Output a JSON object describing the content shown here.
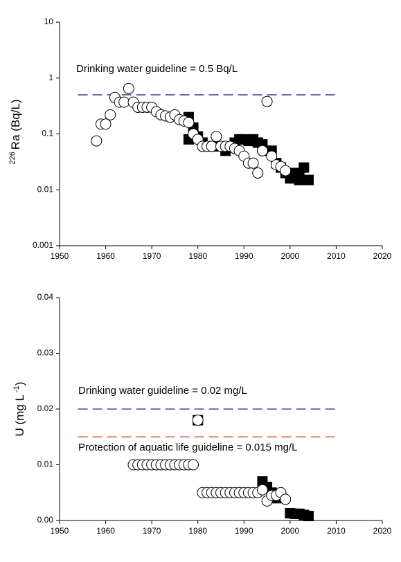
{
  "chart_data": [
    {
      "type": "scatter",
      "yscale": "log",
      "ylabel_sup": "226",
      "ylabel": "Ra (Bq/L)",
      "xlim": [
        1950,
        2020
      ],
      "xticks": [
        1950,
        1960,
        1970,
        1980,
        1990,
        2000,
        2010,
        2020
      ],
      "ylim": [
        0.001,
        10
      ],
      "yticks": [
        0.001,
        0.01,
        0.1,
        1,
        10
      ],
      "grid": false,
      "series": [
        {
          "marker": "square",
          "color": "#000000",
          "x": [
            1978,
            1978,
            1979,
            1980,
            1981,
            1983,
            1985,
            1986,
            1988,
            1989,
            1990,
            1991,
            1992,
            1993,
            1994,
            1995,
            1996,
            1997,
            1998,
            1999,
            2000,
            2001,
            2001,
            2002,
            2002,
            2003,
            2004
          ],
          "values": [
            0.2,
            0.08,
            0.13,
            0.09,
            0.07,
            0.06,
            0.06,
            0.05,
            0.07,
            0.08,
            0.08,
            0.075,
            0.08,
            0.07,
            0.065,
            0.05,
            0.05,
            0.03,
            0.025,
            0.02,
            0.016,
            0.017,
            0.02,
            0.02,
            0.015,
            0.025,
            0.015
          ]
        },
        {
          "marker": "circle",
          "color": "#ffffff",
          "x": [
            1958,
            1959,
            1960,
            1961,
            1962,
            1963,
            1964,
            1965,
            1966,
            1967,
            1968,
            1969,
            1970,
            1971,
            1972,
            1973,
            1974,
            1975,
            1976,
            1977,
            1978,
            1979,
            1980,
            1981,
            1982,
            1983,
            1984,
            1985,
            1986,
            1987,
            1988,
            1989,
            1990,
            1991,
            1992,
            1993,
            1994,
            1995,
            1996,
            1997,
            1998,
            1999
          ],
          "values": [
            0.075,
            0.15,
            0.15,
            0.22,
            0.45,
            0.37,
            0.37,
            0.65,
            0.37,
            0.3,
            0.3,
            0.3,
            0.3,
            0.25,
            0.22,
            0.21,
            0.2,
            0.22,
            0.18,
            0.17,
            0.16,
            0.1,
            0.08,
            0.06,
            0.06,
            0.06,
            0.09,
            0.06,
            0.06,
            0.06,
            0.055,
            0.05,
            0.04,
            0.03,
            0.03,
            0.02,
            0.05,
            0.38,
            0.04,
            0.028,
            0.026,
            0.022
          ]
        }
      ],
      "reference_lines": [
        {
          "label": "Drinking water guideline = 0.5 Bq/L",
          "value": 0.5,
          "x": [
            1954,
            2010
          ],
          "color": "#3c3c8c"
        }
      ]
    },
    {
      "type": "scatter",
      "yscale": "linear",
      "ylabel": "U (mg L",
      "ylabel_sup": "-1",
      "ylabel_end": ")",
      "xlim": [
        1950,
        2020
      ],
      "xticks": [
        1950,
        1960,
        1970,
        1980,
        1990,
        2000,
        2010,
        2020
      ],
      "ylim": [
        0,
        0.04
      ],
      "yticks": [
        {
          "value": 0,
          "label": "0.00"
        },
        {
          "value": 0.01,
          "label": "0.01"
        },
        {
          "value": 0.02,
          "label": "0.02"
        },
        {
          "value": 0.03,
          "label": "0.03"
        },
        {
          "value": 0.04,
          "label": "0.04"
        }
      ],
      "grid": false,
      "series": [
        {
          "marker": "square",
          "color": "#000000",
          "x": [
            1980,
            1994,
            1995,
            1996,
            1997,
            2000,
            2001,
            2002,
            2003,
            2004
          ],
          "values": [
            0.018,
            0.007,
            0.006,
            0.005,
            0.004,
            0.0013,
            0.0012,
            0.0012,
            0.001,
            0.0008
          ]
        },
        {
          "marker": "circle",
          "color": "#ffffff",
          "x": [
            1966,
            1967,
            1968,
            1969,
            1970,
            1971,
            1972,
            1973,
            1974,
            1975,
            1976,
            1977,
            1978,
            1979,
            1980,
            1981,
            1982,
            1983,
            1984,
            1985,
            1986,
            1987,
            1988,
            1989,
            1990,
            1991,
            1992,
            1993,
            1994,
            1995,
            1996,
            1997,
            1998,
            1999
          ],
          "values": [
            0.01,
            0.01,
            0.01,
            0.01,
            0.01,
            0.01,
            0.01,
            0.01,
            0.01,
            0.01,
            0.01,
            0.01,
            0.01,
            0.01,
            0.018,
            0.005,
            0.005,
            0.005,
            0.005,
            0.005,
            0.005,
            0.005,
            0.005,
            0.005,
            0.005,
            0.005,
            0.005,
            0.005,
            0.0055,
            0.0035,
            0.0045,
            0.0045,
            0.005,
            0.0038
          ]
        }
      ],
      "reference_lines": [
        {
          "label": "Drinking water guideline = 0.02 mg/L",
          "value": 0.02,
          "x": [
            1954,
            2010
          ],
          "color": "#4a4aa0"
        },
        {
          "label": "Protection of aquatic life guideline = 0.015 mg/L",
          "value": 0.015,
          "x": [
            1954,
            2010
          ],
          "color": "#e0553c"
        }
      ]
    }
  ]
}
